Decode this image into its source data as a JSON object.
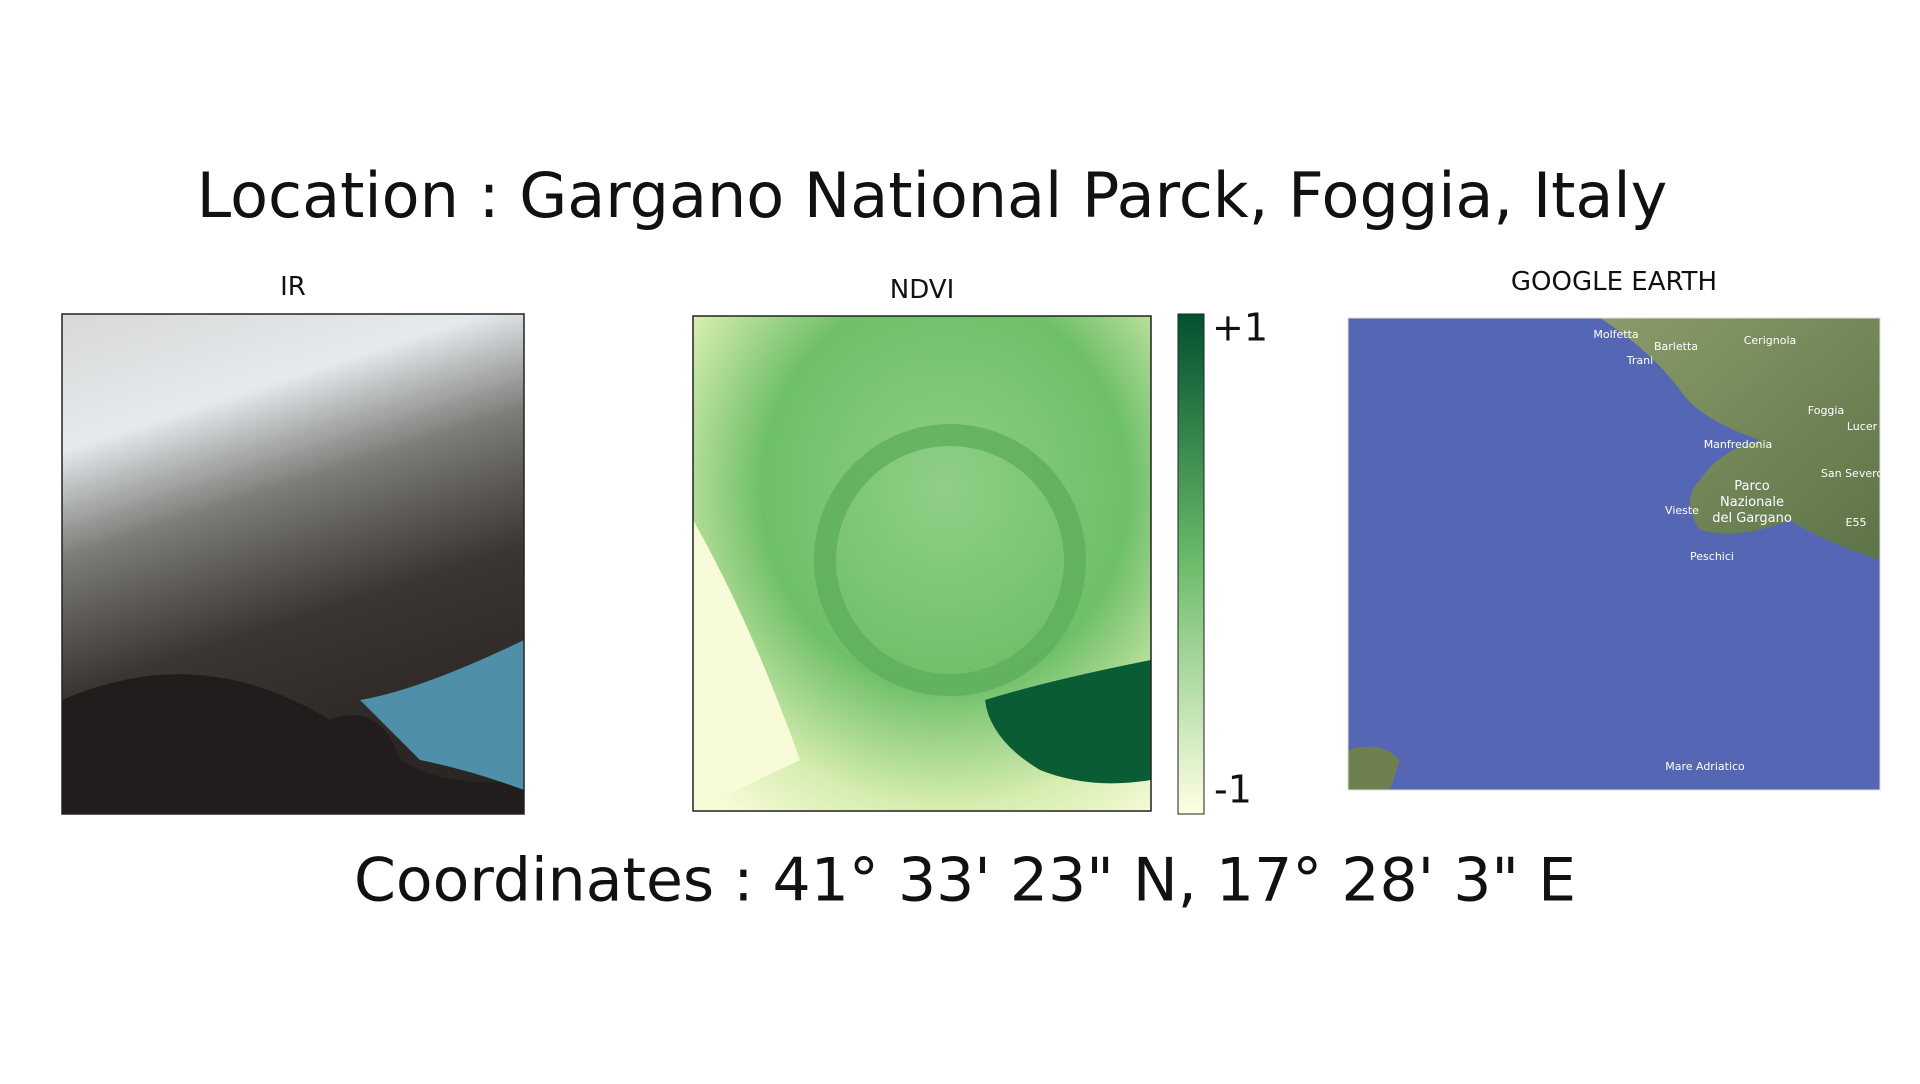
{
  "title": "Location : Gargano National Parck, Foggia, Italy",
  "coordinates": "Coordinates : 41° 33' 23\" N, 17° 28' 3\" E",
  "panels": {
    "ir": {
      "label": "IR"
    },
    "ndvi": {
      "label": "NDVI",
      "colorbar": {
        "top": "+1",
        "bottom": "-1"
      }
    },
    "google_earth": {
      "label": "GOOGLE EARTH",
      "places": [
        "Molfetta",
        "Barletta",
        "Cerignola",
        "Trani",
        "Foggia",
        "Lucer",
        "Manfredonia",
        "San Severo",
        "Parco",
        "Nazionale",
        "del Gargano",
        "Vieste",
        "E55",
        "Peschici",
        "Mare Adriatico"
      ]
    }
  }
}
